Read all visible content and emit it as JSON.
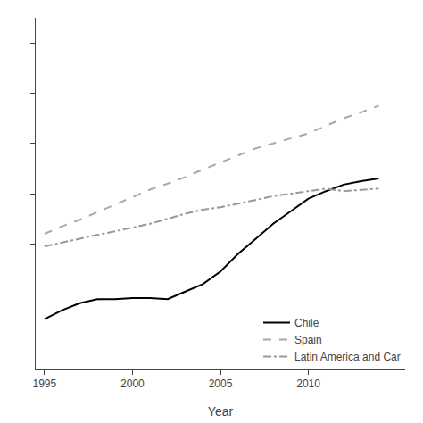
{
  "chart_data": {
    "type": "line",
    "x_label": "Year",
    "x": [
      1995,
      1996,
      1997,
      1998,
      1999,
      2000,
      2001,
      2002,
      2003,
      2004,
      2005,
      2006,
      2007,
      2008,
      2009,
      2010,
      2011,
      2012,
      2013,
      2014
    ],
    "series": [
      {
        "name": "Chile",
        "color": "#000000",
        "line_style": "solid",
        "values": [
          0.45,
          0.468,
          0.482,
          0.49,
          0.49,
          0.492,
          0.492,
          0.49,
          0.505,
          0.52,
          0.545,
          0.58,
          0.61,
          0.64,
          0.665,
          0.69,
          0.705,
          0.718,
          0.725,
          0.73
        ]
      },
      {
        "name": "Spain",
        "color": "#aaaaaa",
        "line_style": "dash",
        "values": [
          0.62,
          0.635,
          0.648,
          0.663,
          0.678,
          0.693,
          0.708,
          0.72,
          0.733,
          0.748,
          0.762,
          0.775,
          0.79,
          0.8,
          0.81,
          0.82,
          0.835,
          0.85,
          0.862,
          0.875
        ]
      },
      {
        "name": "Latin America and Car",
        "color": "#999999",
        "line_style": "dashdot",
        "values": [
          0.595,
          0.603,
          0.61,
          0.618,
          0.625,
          0.633,
          0.64,
          0.65,
          0.66,
          0.668,
          0.673,
          0.68,
          0.688,
          0.695,
          0.7,
          0.705,
          0.71,
          0.705,
          0.708,
          0.71
        ]
      }
    ],
    "xlim": [
      1994.5,
      2015.5
    ],
    "xticks": [
      1995,
      2000,
      2005,
      2010
    ],
    "ylim": [
      0.35,
      1.05
    ],
    "yticks": [
      0.4,
      0.5,
      0.6,
      0.7,
      0.8,
      0.9,
      1.0
    ],
    "tick_labels": "x",
    "grid": false,
    "legend": "lower right"
  }
}
